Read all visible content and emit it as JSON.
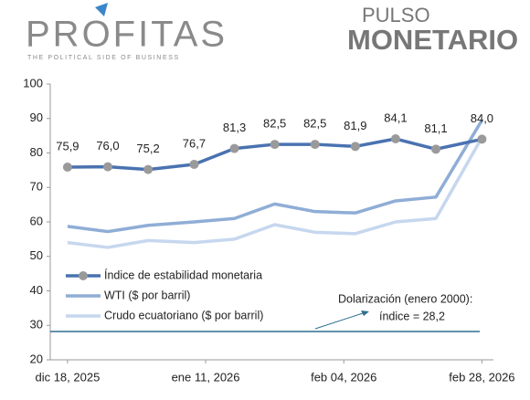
{
  "header": {
    "brand": "PROFITAS",
    "tagline": "THE POLITICAL SIDE OF BUSINESS",
    "product_top": "PULSO",
    "product_bottom": "MONETARIO"
  },
  "chart_data": {
    "type": "line",
    "x": [
      "2025-12-18",
      "2025-12-25",
      "2026-01-01",
      "2026-01-09",
      "2026-01-16",
      "2026-01-23",
      "2026-01-30",
      "2026-02-06",
      "2026-02-13",
      "2026-02-20",
      "2026-02-28"
    ],
    "xlim": [
      "2025-12-15",
      "2026-03-02"
    ],
    "xticks": [
      {
        "value": "2025-12-18",
        "label": "dic 18, 2025"
      },
      {
        "value": "2026-01-11",
        "label": "ene 11, 2026"
      },
      {
        "value": "2026-02-04",
        "label": "feb 04, 2026"
      },
      {
        "value": "2026-02-28",
        "label": "feb 28, 2026"
      }
    ],
    "ylim": [
      20,
      100
    ],
    "yticks": [
      20,
      30,
      40,
      50,
      60,
      70,
      80,
      90,
      100
    ],
    "series": [
      {
        "name": "Índice de estabilidad monetaria",
        "color": "#4a72b0",
        "marker_color": "#9a9a9a",
        "values": [
          75.9,
          76.0,
          75.2,
          76.7,
          81.3,
          82.5,
          82.5,
          81.9,
          84.1,
          81.1,
          84.0
        ],
        "value_labels": [
          "75,9",
          "76,0",
          "75,2",
          "76,7",
          "81,3",
          "82,5",
          "82,5",
          "81,9",
          "84,1",
          "81,1",
          "84,0"
        ]
      },
      {
        "name": "WTI ($ por barril)",
        "color": "#8fadd6",
        "values": [
          58.7,
          57.2,
          59.0,
          60.0,
          61.0,
          65.2,
          63.0,
          62.6,
          66.1,
          67.2,
          89.5
        ]
      },
      {
        "name": "Crudo ecuatoriano ($ por barril)",
        "color": "#c6d7ee",
        "values": [
          54.0,
          52.6,
          54.6,
          54.0,
          55.0,
          59.2,
          57.0,
          56.6,
          60.0,
          61.0,
          84.5
        ]
      }
    ],
    "reference_line": {
      "value": 28.2,
      "color": "#2f6f8f",
      "label": [
        "Dolarización (enero 2000):",
        "índice = 28,2"
      ]
    }
  }
}
